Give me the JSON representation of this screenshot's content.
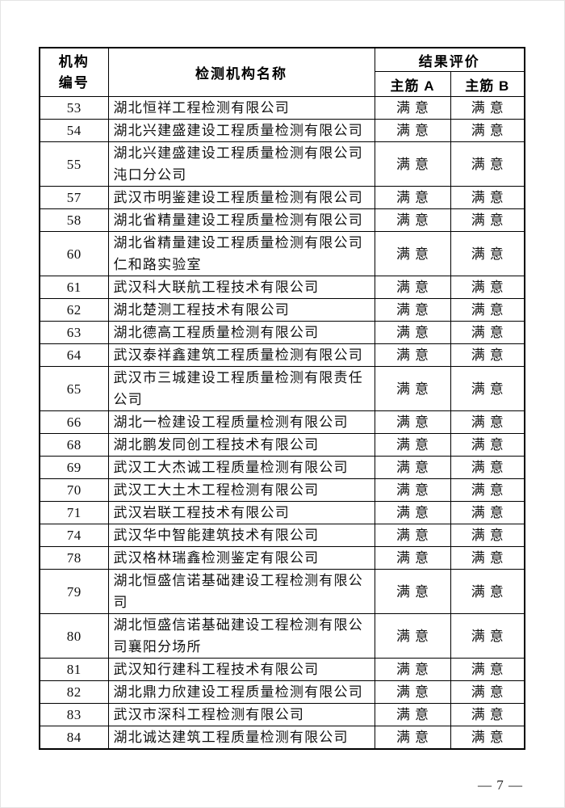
{
  "page": {
    "footer_page_number": "— 7 —"
  },
  "table": {
    "headers": {
      "org_number_line1": "机构",
      "org_number_line2": "编号",
      "org_name": "检测机构名称",
      "result_eval": "结果评价",
      "col_a": "主筋 A",
      "col_b": "主筋 B"
    },
    "rows": [
      {
        "no": "53",
        "name": "湖北恒祥工程检测有限公司",
        "a": "满意",
        "b": "满意"
      },
      {
        "no": "54",
        "name": "湖北兴建盛建设工程质量检测有限公司",
        "a": "满意",
        "b": "满意"
      },
      {
        "no": "55",
        "name": "湖北兴建盛建设工程质量检测有限公司沌口分公司",
        "a": "满意",
        "b": "满意"
      },
      {
        "no": "57",
        "name": "武汉市明鉴建设工程质量检测有限公司",
        "a": "满意",
        "b": "满意"
      },
      {
        "no": "58",
        "name": "湖北省精量建设工程质量检测有限公司",
        "a": "满意",
        "b": "满意"
      },
      {
        "no": "60",
        "name": "湖北省精量建设工程质量检测有限公司仁和路实验室",
        "a": "满意",
        "b": "满意"
      },
      {
        "no": "61",
        "name": "武汉科大联航工程技术有限公司",
        "a": "满意",
        "b": "满意"
      },
      {
        "no": "62",
        "name": "湖北楚测工程技术有限公司",
        "a": "满意",
        "b": "满意"
      },
      {
        "no": "63",
        "name": "湖北德高工程质量检测有限公司",
        "a": "满意",
        "b": "满意"
      },
      {
        "no": "64",
        "name": "武汉泰祥鑫建筑工程质量检测有限公司",
        "a": "满意",
        "b": "满意"
      },
      {
        "no": "65",
        "name": "武汉市三城建设工程质量检测有限责任公司",
        "a": "满意",
        "b": "满意"
      },
      {
        "no": "66",
        "name": "湖北一检建设工程质量检测有限公司",
        "a": "满意",
        "b": "满意"
      },
      {
        "no": "68",
        "name": "湖北鹏发同创工程技术有限公司",
        "a": "满意",
        "b": "满意"
      },
      {
        "no": "69",
        "name": "武汉工大杰诚工程质量检测有限公司",
        "a": "满意",
        "b": "满意"
      },
      {
        "no": "70",
        "name": "武汉工大土木工程检测有限公司",
        "a": "满意",
        "b": "满意"
      },
      {
        "no": "71",
        "name": "武汉岩联工程技术有限公司",
        "a": "满意",
        "b": "满意"
      },
      {
        "no": "74",
        "name": "武汉华中智能建筑技术有限公司",
        "a": "满意",
        "b": "满意"
      },
      {
        "no": "78",
        "name": "武汉格林瑞鑫检测鉴定有限公司",
        "a": "满意",
        "b": "满意"
      },
      {
        "no": "79",
        "name": "湖北恒盛信诺基础建设工程检测有限公司",
        "a": "满意",
        "b": "满意"
      },
      {
        "no": "80",
        "name": "湖北恒盛信诺基础建设工程检测有限公司襄阳分场所",
        "a": "满意",
        "b": "满意"
      },
      {
        "no": "81",
        "name": "武汉知行建科工程技术有限公司",
        "a": "满意",
        "b": "满意"
      },
      {
        "no": "82",
        "name": "湖北鼎力欣建设工程质量检测有限公司",
        "a": "满意",
        "b": "满意"
      },
      {
        "no": "83",
        "name": "武汉市深科工程检测有限公司",
        "a": "满意",
        "b": "满意"
      },
      {
        "no": "84",
        "name": "湖北诚达建筑工程质量检测有限公司",
        "a": "满意",
        "b": "满意"
      }
    ]
  }
}
